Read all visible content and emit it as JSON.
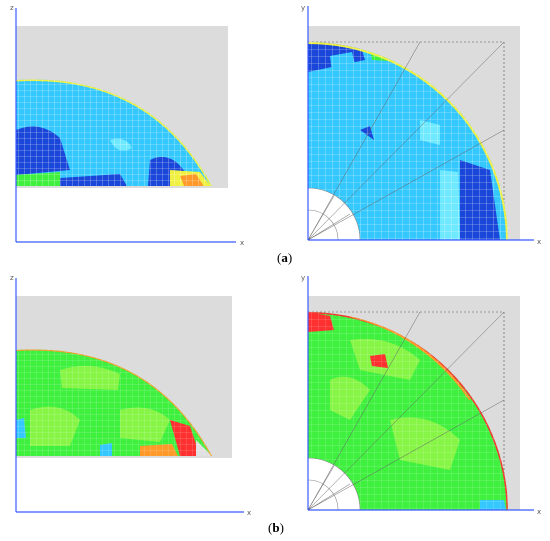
{
  "panels": [
    {
      "id": "a-left",
      "axis_h": "x",
      "axis_v": "z"
    },
    {
      "id": "a-right",
      "axis_h": "x",
      "axis_v": "y"
    },
    {
      "id": "b-left",
      "axis_h": "x",
      "axis_v": "z"
    },
    {
      "id": "b-right",
      "axis_h": "x",
      "axis_v": "y"
    }
  ],
  "captions": {
    "a": {
      "open": "(",
      "letter": "a",
      "close": ")"
    },
    "b": {
      "open": "(",
      "letter": "b",
      "close": ")"
    }
  },
  "colors": {
    "background_plate": "#dcdcdc",
    "axis": "#3b5bff",
    "mesh_line": "#ffffff",
    "blue_main": "#34c8ff",
    "blue_dark": "#1a46d9",
    "cyan_light": "#6fe9ff",
    "green": "#3ff03f",
    "green_light": "#86f546",
    "yellow": "#f0f040",
    "orange": "#ff9a2a",
    "red": "#ff3030"
  }
}
